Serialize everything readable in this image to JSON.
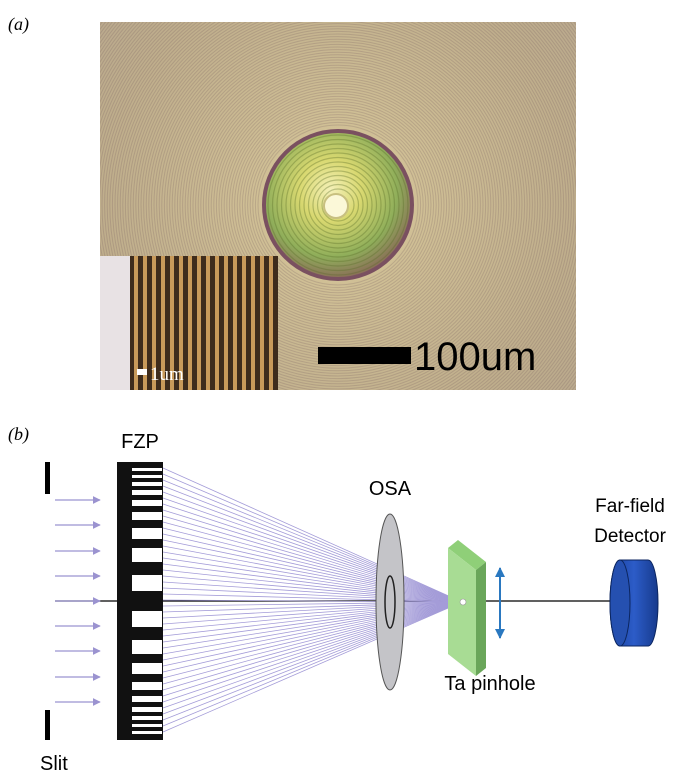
{
  "panel_a": {
    "label": "(a)",
    "scale_bar": "100um",
    "inset_scale_bar": "1um"
  },
  "panel_b": {
    "label": "(b)",
    "fzp": "FZP",
    "slit": "Slit",
    "osa": "OSA",
    "pinhole": "Ta pinhole",
    "detector": [
      "Far-field",
      "Detector"
    ]
  }
}
